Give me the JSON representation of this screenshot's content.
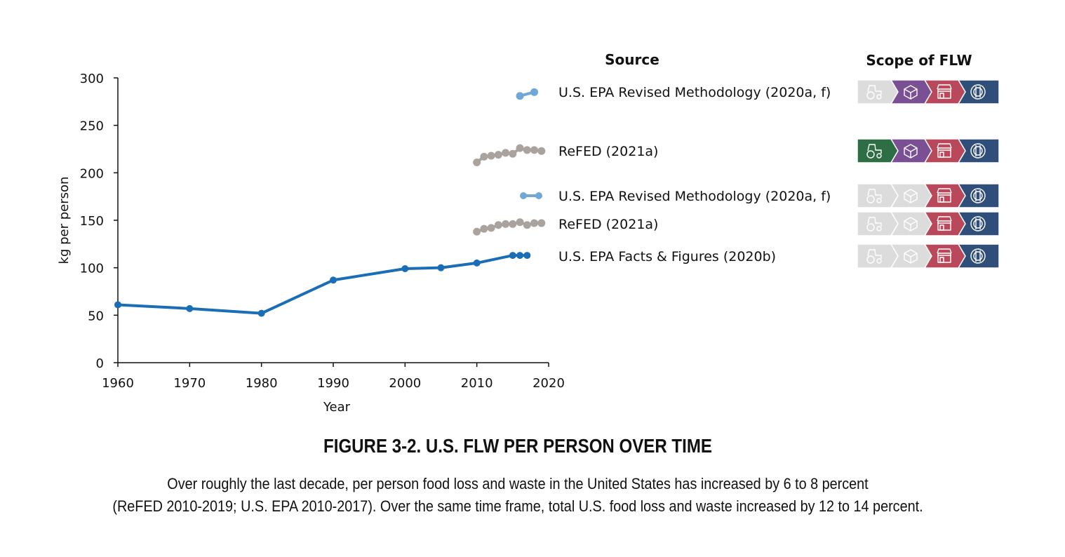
{
  "chart_data": {
    "type": "line",
    "xlabel": "Year",
    "ylabel": "kg per person",
    "xlim": [
      1960,
      2020
    ],
    "ylim": [
      0,
      300
    ],
    "xticks": [
      1960,
      1970,
      1980,
      1990,
      2000,
      2010,
      2020
    ],
    "yticks": [
      0,
      50,
      100,
      150,
      200,
      250,
      300
    ],
    "grid": false,
    "legend_header": "Source",
    "scope_header": "Scope of FLW",
    "series": [
      {
        "name": "U.S. EPA Revised Methodology (2020a, f)",
        "color": "#6fa8d6",
        "x": [
          2016,
          2018
        ],
        "y": [
          281,
          285
        ],
        "scope": [
          "off",
          "on",
          "on",
          "on"
        ]
      },
      {
        "name": "ReFED (2021a)",
        "color": "#aaa39d",
        "x": [
          2010,
          2011,
          2012,
          2013,
          2014,
          2015,
          2016,
          2017,
          2018,
          2019
        ],
        "y": [
          211,
          217,
          218,
          219,
          221,
          220,
          226,
          224,
          224,
          223
        ],
        "scope": [
          "on",
          "on",
          "on",
          "on"
        ]
      },
      {
        "name": "U.S. EPA Revised Methodology (2020a, f)",
        "color": "#6fa8d6",
        "x": [],
        "y": [],
        "scope": [
          "off",
          "off",
          "on",
          "on"
        ]
      },
      {
        "name": "ReFED (2021a)",
        "color": "#aaa39d",
        "x": [
          2010,
          2011,
          2012,
          2013,
          2014,
          2015,
          2016,
          2017,
          2018,
          2019
        ],
        "y": [
          138,
          141,
          142,
          145,
          146,
          146,
          148,
          145,
          147,
          147
        ],
        "scope": [
          "off",
          "off",
          "on",
          "on"
        ]
      },
      {
        "name": "U.S. EPA Facts & Figures (2020b)",
        "color": "#1a6eb5",
        "x": [
          1960,
          1970,
          1980,
          1990,
          2000,
          2005,
          2010,
          2015,
          2016,
          2017
        ],
        "y": [
          61,
          57,
          52,
          87,
          99,
          100,
          105,
          113,
          113,
          113
        ],
        "scope": [
          "off",
          "off",
          "on",
          "on"
        ]
      }
    ],
    "scope_stages": [
      {
        "icon": "tractor-icon",
        "on_color": "#2e6e45"
      },
      {
        "icon": "package-icon",
        "on_color": "#7b4f94"
      },
      {
        "icon": "storefront-icon",
        "on_color": "#b8485a"
      },
      {
        "icon": "plate-utensils-icon",
        "on_color": "#2f4f7a"
      }
    ],
    "scope_off_color": "#dcdcdc"
  },
  "caption": {
    "title": "FIGURE 3-2. U.S. FLW PER PERSON OVER TIME",
    "line1": "Over roughly the last decade, per person food loss and waste in the United States has increased by 6 to 8 percent",
    "line2": "(ReFED 2010-2019; U.S. EPA 2010-2017). Over the same time frame, total U.S. food loss and waste increased by 12 to 14 percent."
  }
}
